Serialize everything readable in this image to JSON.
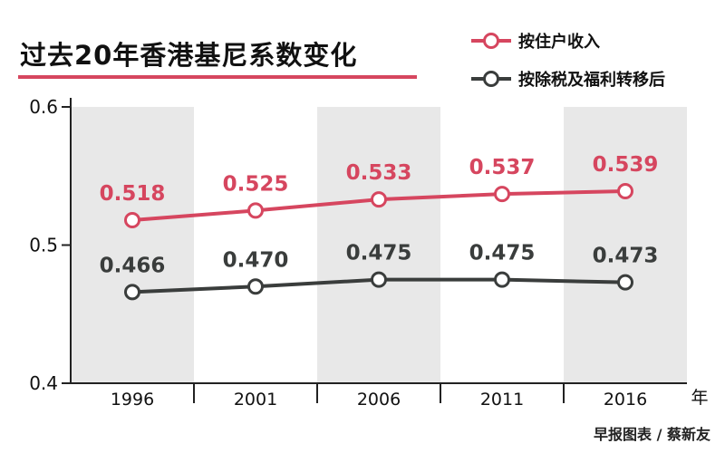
{
  "title": "过去20年香港基尼系数变化",
  "credit": "早报图表 / 蔡新友",
  "colors": {
    "pre": "#d6465f",
    "post": "#3a3d3c",
    "band": "#e8e8e8",
    "axis": "#222222"
  },
  "chart_data": {
    "type": "line",
    "x": [
      "1996",
      "2001",
      "2006",
      "2011",
      "2016"
    ],
    "xunit": "年",
    "ylim": [
      0.4,
      0.6
    ],
    "yticks": [
      "0.6",
      "0.5",
      "0.4"
    ],
    "series": [
      {
        "name": "按住户收入",
        "values": [
          0.518,
          0.525,
          0.533,
          0.537,
          0.539
        ],
        "labels": [
          "0.518",
          "0.525",
          "0.533",
          "0.537",
          "0.539"
        ]
      },
      {
        "name": "按除税及福利转移后",
        "values": [
          0.466,
          0.47,
          0.475,
          0.475,
          0.473
        ],
        "labels": [
          "0.466",
          "0.470",
          "0.475",
          "0.475",
          "0.473"
        ]
      }
    ],
    "legend": "top-right",
    "grid": false
  }
}
